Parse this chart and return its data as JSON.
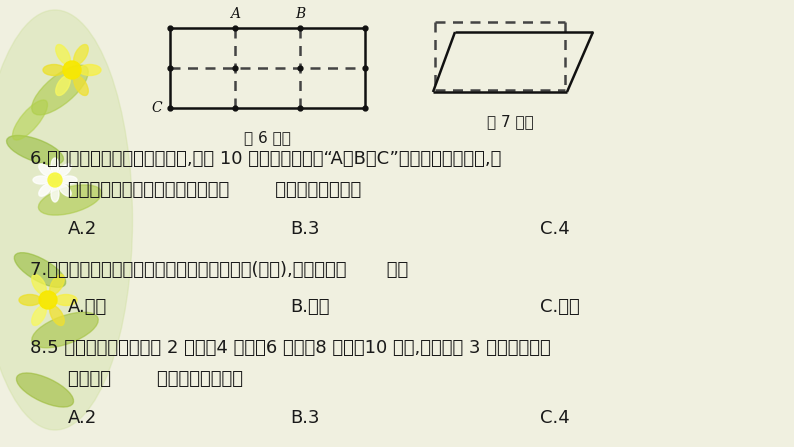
{
  "bg_color": "#f0f0e0",
  "fig_width": 7.94,
  "fig_height": 4.47,
  "diagram6_label": "第 6 题图",
  "diagram7_label": "第 7 题图",
  "q6_line1": "6.一张长方形纸对折两次后展开,得到 10 个交点。如果在“A、B、C”之外再选一个交点,使",
  "q6_line2": "这四点连接能形成一个梯形。有（        ）种不同的选法。",
  "q6_A": "A.2",
  "q6_B": "B.3",
  "q6_C": "C.4",
  "q7_line1": "7.把一个长方形活动框架拉成一个平行四边形(如图),它的周长（       ）。",
  "q7_A": "A.变长",
  "q7_B": "B.变短",
  "q7_C": "C.不变",
  "q8_line1": "8.5 根小棒的长度分别为 2 厘米、4 厘米、6 厘米、8 厘米、10 厘米,从中任选 3 根围三角形。",
  "q8_line2": "一共有（        ）种不同的围法。",
  "q8_A": "A.2",
  "q8_B": "B.3",
  "q8_C": "C.4",
  "text_color": "#1a1a1a",
  "dashed_color": "#444444",
  "solid_color": "#111111"
}
